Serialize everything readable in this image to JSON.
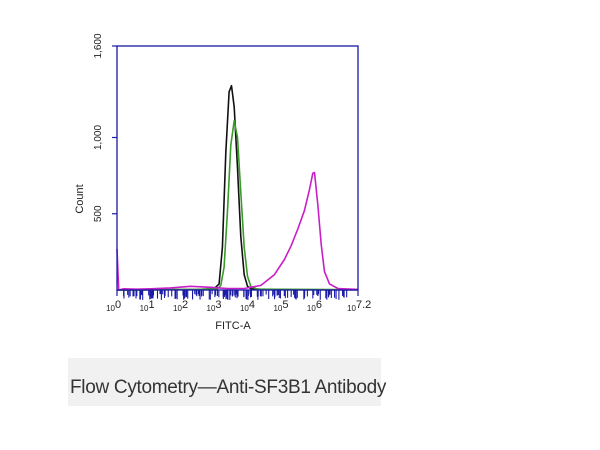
{
  "chart_data": {
    "type": "line",
    "title": "",
    "xlabel": "FITC-A",
    "ylabel": "Count",
    "x_scale": "log",
    "xlim": [
      0,
      7.2
    ],
    "ylim": [
      0,
      1600
    ],
    "x_ticks": [
      {
        "base": "10",
        "exp": "0",
        "value": 0
      },
      {
        "base": "10",
        "exp": "1",
        "value": 1
      },
      {
        "base": "10",
        "exp": "2",
        "value": 2
      },
      {
        "base": "10",
        "exp": "3",
        "value": 3
      },
      {
        "base": "10",
        "exp": "4",
        "value": 4
      },
      {
        "base": "10",
        "exp": "5",
        "value": 5
      },
      {
        "base": "10",
        "exp": "6",
        "value": 6
      },
      {
        "base": "10",
        "exp": "7.2",
        "value": 7.2
      }
    ],
    "y_ticks": [
      {
        "label": "500",
        "value": 500
      },
      {
        "label": "1,000",
        "value": 1000
      },
      {
        "label": "1,600",
        "value": 1600
      }
    ],
    "series": [
      {
        "color": "#111111",
        "points": [
          [
            0,
            0
          ],
          [
            2.4,
            4
          ],
          [
            2.9,
            8
          ],
          [
            3.05,
            40
          ],
          [
            3.15,
            280
          ],
          [
            3.25,
            900
          ],
          [
            3.35,
            1300
          ],
          [
            3.42,
            1340
          ],
          [
            3.5,
            1200
          ],
          [
            3.6,
            800
          ],
          [
            3.7,
            350
          ],
          [
            3.8,
            100
          ],
          [
            3.9,
            25
          ],
          [
            4.0,
            8
          ],
          [
            4.5,
            2
          ],
          [
            7.2,
            1
          ]
        ]
      },
      {
        "color": "#3a9a2a",
        "points": [
          [
            0,
            0
          ],
          [
            2.4,
            4
          ],
          [
            3.0,
            8
          ],
          [
            3.1,
            30
          ],
          [
            3.2,
            150
          ],
          [
            3.3,
            520
          ],
          [
            3.4,
            950
          ],
          [
            3.5,
            1110
          ],
          [
            3.6,
            1000
          ],
          [
            3.7,
            640
          ],
          [
            3.8,
            280
          ],
          [
            3.9,
            90
          ],
          [
            4.0,
            22
          ],
          [
            4.2,
            5
          ],
          [
            7.2,
            2
          ]
        ]
      },
      {
        "color": "#c81ec8",
        "points": [
          [
            0,
            270
          ],
          [
            0.05,
            0
          ],
          [
            0.2,
            8
          ],
          [
            0.6,
            5
          ],
          [
            1,
            8
          ],
          [
            1.6,
            14
          ],
          [
            2.2,
            24
          ],
          [
            2.8,
            18
          ],
          [
            3.3,
            9
          ],
          [
            3.8,
            10
          ],
          [
            4.3,
            30
          ],
          [
            4.7,
            100
          ],
          [
            5.0,
            200
          ],
          [
            5.2,
            290
          ],
          [
            5.4,
            400
          ],
          [
            5.6,
            520
          ],
          [
            5.75,
            660
          ],
          [
            5.85,
            765
          ],
          [
            5.9,
            770
          ],
          [
            6.0,
            560
          ],
          [
            6.1,
            300
          ],
          [
            6.2,
            120
          ],
          [
            6.35,
            40
          ],
          [
            6.6,
            10
          ],
          [
            7.2,
            4
          ]
        ]
      }
    ]
  },
  "caption": {
    "text": "Flow Cytometry—Anti-SF3B1 Antibody"
  }
}
